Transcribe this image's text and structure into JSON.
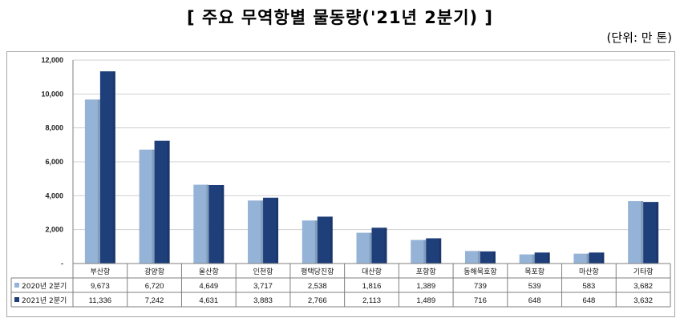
{
  "header": {
    "title": "[ 주요 무역항별 물동량('21년 2분기) ]",
    "unit": "(단위: 만 톤)"
  },
  "chart_data": {
    "type": "bar",
    "categories": [
      "부산항",
      "광양항",
      "울산항",
      "인천항",
      "평택당진항",
      "대산항",
      "포항항",
      "동해묵호항",
      "목포항",
      "마산항",
      "기타항"
    ],
    "series": [
      {
        "name": "2020년 2분기",
        "color": "#95b3d7",
        "values": [
          9673,
          6720,
          4649,
          3717,
          2538,
          1816,
          1389,
          739,
          539,
          583,
          3682
        ]
      },
      {
        "name": "2021년 2분기",
        "color": "#1f3f7a",
        "values": [
          11336,
          7242,
          4631,
          3883,
          2766,
          2113,
          1489,
          716,
          648,
          648,
          3632
        ]
      }
    ],
    "ylim": [
      0,
      12000
    ],
    "yticks": [
      0,
      2000,
      4000,
      6000,
      8000,
      10000,
      12000
    ],
    "ytick_labels": [
      "-",
      "2,000",
      "4,000",
      "6,000",
      "8,000",
      "10,000",
      "12,000"
    ],
    "grid": true,
    "legend": "data-table-left",
    "table": {
      "rows": [
        [
          "9,673",
          "6,720",
          "4,649",
          "3,717",
          "2,538",
          "1,816",
          "1,389",
          "739",
          "539",
          "583",
          "3,682"
        ],
        [
          "11,336",
          "7,242",
          "4,631",
          "3,883",
          "2,766",
          "2,113",
          "1,489",
          "716",
          "648",
          "648",
          "3,632"
        ]
      ]
    }
  }
}
